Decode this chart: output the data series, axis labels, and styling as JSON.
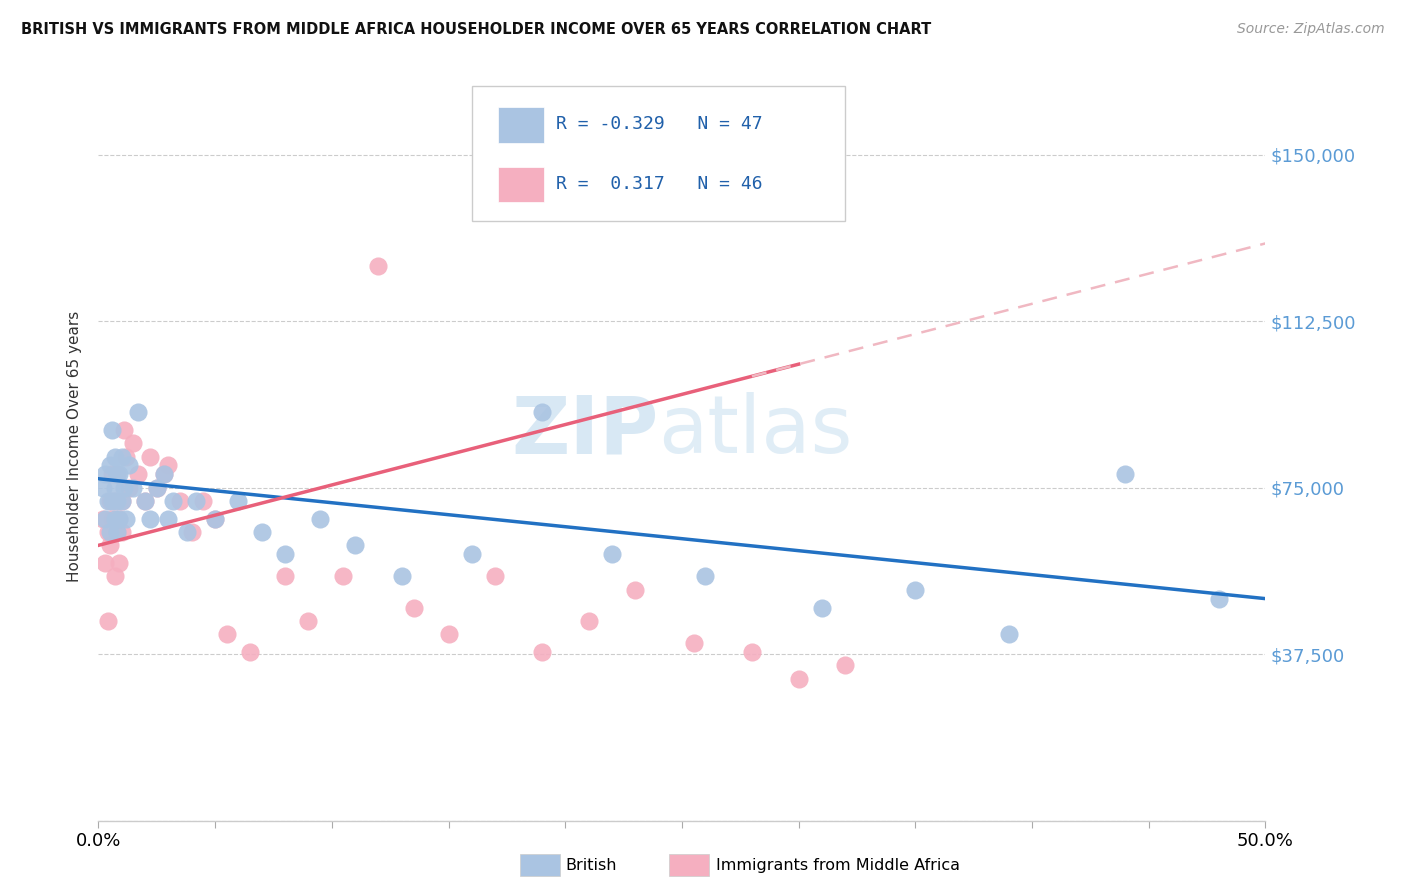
{
  "title": "BRITISH VS IMMIGRANTS FROM MIDDLE AFRICA HOUSEHOLDER INCOME OVER 65 YEARS CORRELATION CHART",
  "source": "Source: ZipAtlas.com",
  "ylabel": "Householder Income Over 65 years",
  "xlim": [
    0.0,
    0.5
  ],
  "ylim": [
    0,
    168750
  ],
  "legend_r_british": "-0.329",
  "legend_n_british": "47",
  "legend_r_immigrants": "0.317",
  "legend_n_immigrants": "46",
  "british_color": "#aac4e2",
  "immigrants_color": "#f5afc0",
  "british_line_color": "#2271c3",
  "immigrants_line_color": "#e8607a",
  "dashed_line_color": "#f0b8c2",
  "watermark_zip": "ZIP",
  "watermark_atlas": "atlas",
  "british_x": [
    0.002,
    0.003,
    0.003,
    0.004,
    0.005,
    0.005,
    0.006,
    0.006,
    0.007,
    0.007,
    0.007,
    0.008,
    0.008,
    0.008,
    0.009,
    0.009,
    0.01,
    0.01,
    0.011,
    0.012,
    0.013,
    0.015,
    0.017,
    0.02,
    0.022,
    0.025,
    0.028,
    0.03,
    0.032,
    0.038,
    0.042,
    0.05,
    0.06,
    0.07,
    0.08,
    0.095,
    0.11,
    0.13,
    0.16,
    0.19,
    0.22,
    0.26,
    0.31,
    0.35,
    0.39,
    0.44,
    0.48
  ],
  "british_y": [
    75000,
    78000,
    68000,
    72000,
    80000,
    65000,
    72000,
    88000,
    75000,
    82000,
    68000,
    78000,
    72000,
    65000,
    68000,
    78000,
    72000,
    82000,
    75000,
    68000,
    80000,
    75000,
    92000,
    72000,
    68000,
    75000,
    78000,
    68000,
    72000,
    65000,
    72000,
    68000,
    72000,
    65000,
    60000,
    68000,
    62000,
    55000,
    60000,
    92000,
    60000,
    55000,
    48000,
    52000,
    42000,
    78000,
    50000
  ],
  "immigrants_x": [
    0.002,
    0.003,
    0.004,
    0.004,
    0.005,
    0.005,
    0.006,
    0.006,
    0.007,
    0.007,
    0.008,
    0.008,
    0.009,
    0.009,
    0.01,
    0.01,
    0.011,
    0.012,
    0.013,
    0.015,
    0.017,
    0.02,
    0.022,
    0.025,
    0.028,
    0.03,
    0.035,
    0.04,
    0.045,
    0.05,
    0.055,
    0.065,
    0.08,
    0.09,
    0.105,
    0.12,
    0.135,
    0.15,
    0.17,
    0.19,
    0.21,
    0.23,
    0.255,
    0.28,
    0.3,
    0.32
  ],
  "immigrants_y": [
    68000,
    58000,
    65000,
    45000,
    72000,
    62000,
    78000,
    68000,
    72000,
    55000,
    65000,
    78000,
    68000,
    58000,
    72000,
    65000,
    88000,
    82000,
    75000,
    85000,
    78000,
    72000,
    82000,
    75000,
    78000,
    80000,
    72000,
    65000,
    72000,
    68000,
    42000,
    38000,
    55000,
    45000,
    55000,
    125000,
    48000,
    42000,
    55000,
    38000,
    45000,
    52000,
    40000,
    38000,
    32000,
    35000
  ]
}
